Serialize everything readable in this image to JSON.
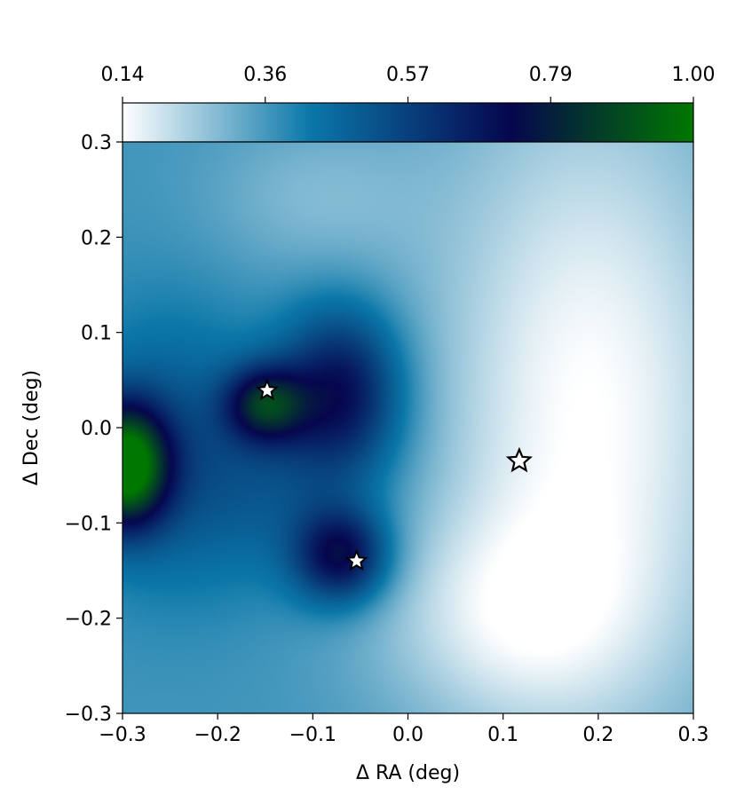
{
  "chart_data": {
    "type": "heatmap",
    "title": "",
    "xlabel": "Δ RA (deg)",
    "ylabel": "Δ Dec (deg)",
    "xlim": [
      -0.3,
      0.3
    ],
    "ylim": [
      -0.3,
      0.3
    ],
    "xticks": [
      "−0.3",
      "−0.2",
      "−0.1",
      "0.0",
      "0.1",
      "0.2",
      "0.3"
    ],
    "yticks": [
      "0.3",
      "0.2",
      "0.1",
      "0.0",
      "−0.1",
      "−0.2",
      "−0.3"
    ],
    "grid": false,
    "colorbar": {
      "placement": "top",
      "range": [
        0.14,
        1.0
      ],
      "ticks": [
        "0.14",
        "0.36",
        "0.57",
        "0.79",
        "1.00"
      ],
      "colormap": [
        "#ffffff",
        "#0a77a8",
        "#06064e",
        "#007800"
      ]
    },
    "field": {
      "base": 0.36,
      "components": [
        {
          "x": -0.298,
          "y": -0.04,
          "sx": 0.032,
          "sy": 0.045,
          "amp": 0.65
        },
        {
          "x": -0.15,
          "y": 0.025,
          "sx": 0.03,
          "sy": 0.028,
          "amp": 0.38
        },
        {
          "x": -0.07,
          "y": 0.04,
          "sx": 0.045,
          "sy": 0.06,
          "amp": 0.34
        },
        {
          "x": -0.07,
          "y": -0.135,
          "sx": 0.035,
          "sy": 0.035,
          "amp": 0.37
        },
        {
          "x": -0.25,
          "y": -0.02,
          "sx": 0.07,
          "sy": 0.1,
          "amp": 0.14
        },
        {
          "x": -0.13,
          "y": -0.06,
          "sx": 0.08,
          "sy": 0.07,
          "amp": 0.1
        },
        {
          "x": 0.19,
          "y": 0.02,
          "sx": 0.12,
          "sy": 0.25,
          "amp": -0.22
        },
        {
          "x": 0.1,
          "y": -0.2,
          "sx": 0.1,
          "sy": 0.08,
          "amp": -0.12
        },
        {
          "x": -0.1,
          "y": 0.24,
          "sx": 0.08,
          "sy": 0.06,
          "amp": -0.07
        }
      ]
    },
    "markers": [
      {
        "x": -0.148,
        "y": 0.039,
        "style": "filled-star"
      },
      {
        "x": -0.054,
        "y": -0.14,
        "style": "filled-star"
      },
      {
        "x": 0.117,
        "y": -0.035,
        "style": "open-star"
      }
    ]
  }
}
